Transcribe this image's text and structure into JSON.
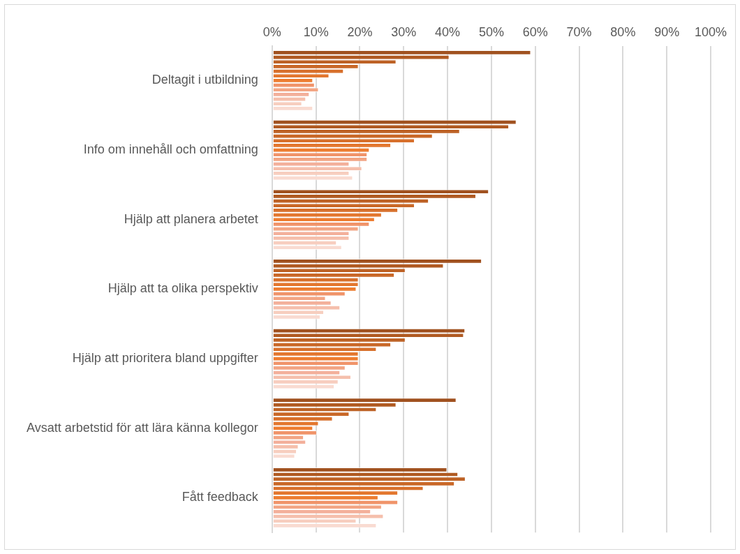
{
  "chart_data": {
    "type": "bar",
    "orientation": "horizontal",
    "legend": false,
    "grid": "x",
    "categories": [
      "Deltagit i utbildning",
      "Info om innehåll och omfattning",
      "Hjälp att planera arbetet",
      "Hjälp att ta olika perspektiv",
      "Hjälp att prioritera bland uppgifter",
      "Avsatt arbetstid för att lära känna kollegor",
      "Fått feedback"
    ],
    "xlim": [
      0,
      100
    ],
    "xticks": [
      {
        "value": 0,
        "label": "0%"
      },
      {
        "value": 10,
        "label": "10%"
      },
      {
        "value": 20,
        "label": "20%"
      },
      {
        "value": 30,
        "label": "30%"
      },
      {
        "value": 40,
        "label": "40%"
      },
      {
        "value": 50,
        "label": "50%"
      },
      {
        "value": 60,
        "label": "60%"
      },
      {
        "value": 70,
        "label": "70%"
      },
      {
        "value": 80,
        "label": "80%"
      },
      {
        "value": 90,
        "label": "90%"
      },
      {
        "value": 100,
        "label": "100%"
      }
    ],
    "series": [
      {
        "color": "#a0511f",
        "values": [
          59.0,
          55.7,
          49.4,
          47.8,
          44.0,
          42.0,
          39.9
        ]
      },
      {
        "color": "#b05a22",
        "values": [
          40.4,
          54.0,
          46.5,
          39.1,
          43.7,
          28.3,
          42.4
        ]
      },
      {
        "color": "#bd6226",
        "values": [
          28.3,
          42.8,
          35.7,
          30.4,
          30.4,
          23.8,
          44.1
        ]
      },
      {
        "color": "#c96828",
        "values": [
          19.7,
          36.6,
          32.5,
          27.9,
          27.1,
          17.6,
          41.6
        ]
      },
      {
        "color": "#d7702c",
        "values": [
          16.3,
          32.5,
          28.7,
          19.7,
          23.8,
          13.8,
          34.5
        ]
      },
      {
        "color": "#e3772f",
        "values": [
          13.0,
          27.1,
          25.0,
          19.7,
          19.7,
          10.6,
          28.7
        ]
      },
      {
        "color": "#ed7d31",
        "values": [
          9.3,
          22.2,
          23.4,
          19.2,
          19.7,
          9.3,
          24.2
        ]
      },
      {
        "color": "#f0946a",
        "values": [
          9.7,
          21.7,
          22.2,
          16.7,
          19.7,
          10.2,
          28.7
        ]
      },
      {
        "color": "#f2a584",
        "values": [
          10.6,
          21.7,
          19.7,
          12.2,
          16.7,
          7.2,
          25.0
        ]
      },
      {
        "color": "#f3b09b",
        "values": [
          8.5,
          17.6,
          17.6,
          13.5,
          15.5,
          7.7,
          22.5
        ]
      },
      {
        "color": "#f5bfac",
        "values": [
          7.7,
          20.5,
          17.6,
          15.5,
          18.0,
          6.0,
          25.4
        ]
      },
      {
        "color": "#f7cebf",
        "values": [
          6.8,
          17.6,
          14.7,
          11.8,
          15.1,
          5.6,
          19.2
        ]
      },
      {
        "color": "#f9dbd1",
        "values": [
          9.3,
          18.4,
          15.9,
          11.0,
          14.2,
          5.2,
          23.8
        ]
      }
    ]
  }
}
